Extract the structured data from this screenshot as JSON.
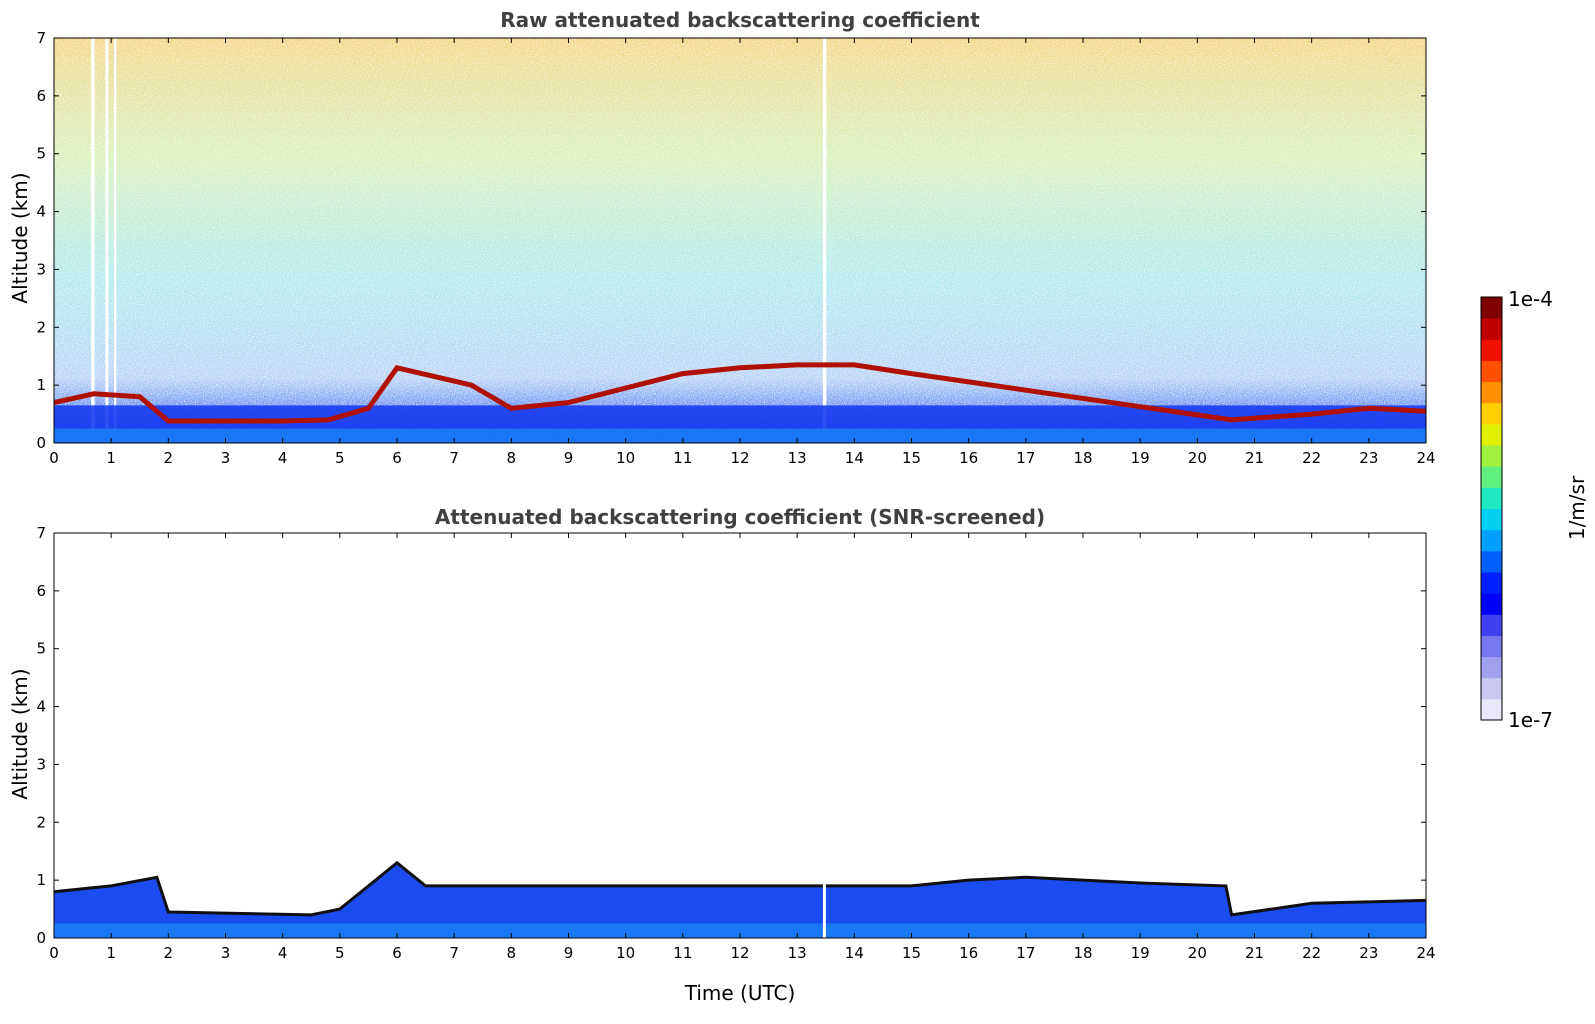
{
  "chart_data": [
    {
      "type": "heatmap",
      "title": "Raw attenuated backscattering coefficient",
      "xlabel": "",
      "ylabel": "Altitude (km)",
      "xlim": [
        0,
        24
      ],
      "ylim": [
        0,
        7
      ],
      "xticks": [
        "0",
        "1",
        "2",
        "3",
        "4",
        "5",
        "6",
        "7",
        "8",
        "9",
        "10",
        "11",
        "12",
        "13",
        "14",
        "15",
        "16",
        "17",
        "18",
        "19",
        "20",
        "21",
        "22",
        "23",
        "24"
      ],
      "yticks": [
        "0",
        "1",
        "2",
        "3",
        "4",
        "5",
        "6",
        "7"
      ],
      "grid": false,
      "color_scale": "log",
      "description_values": {
        "cloud_layer_top_km": [
          [
            0,
            0.7
          ],
          [
            0.7,
            0.85
          ],
          [
            1.5,
            0.8
          ],
          [
            2,
            0.38
          ],
          [
            4,
            0.38
          ],
          [
            4.8,
            0.4
          ],
          [
            5.5,
            0.6
          ],
          [
            6,
            1.3
          ],
          [
            7.3,
            1.0
          ],
          [
            8,
            0.6
          ],
          [
            9,
            0.7
          ],
          [
            11,
            1.2
          ],
          [
            12,
            1.3
          ],
          [
            13,
            1.35
          ],
          [
            14,
            1.35
          ],
          [
            15,
            1.2
          ],
          [
            20.6,
            0.4
          ],
          [
            22,
            0.5
          ],
          [
            23,
            0.6
          ],
          [
            24,
            0.55
          ]
        ]
      }
    },
    {
      "type": "heatmap",
      "title": "Attenuated backscattering coefficient (SNR-screened)",
      "xlabel": "Time (UTC)",
      "ylabel": "Altitude (km)",
      "xlim": [
        0,
        24
      ],
      "ylim": [
        0,
        7
      ],
      "xticks": [
        "0",
        "1",
        "2",
        "3",
        "4",
        "5",
        "6",
        "7",
        "8",
        "9",
        "10",
        "11",
        "12",
        "13",
        "14",
        "15",
        "16",
        "17",
        "18",
        "19",
        "20",
        "21",
        "22",
        "23",
        "24"
      ],
      "yticks": [
        "0",
        "1",
        "2",
        "3",
        "4",
        "5",
        "6",
        "7"
      ],
      "grid": false,
      "color_scale": "log",
      "description_values": {
        "boundary_layer_top_km": [
          [
            0,
            0.8
          ],
          [
            1,
            0.9
          ],
          [
            1.8,
            1.05
          ],
          [
            2,
            0.45
          ],
          [
            4.5,
            0.4
          ],
          [
            5,
            0.5
          ],
          [
            6,
            1.3
          ],
          [
            6.5,
            0.9
          ],
          [
            8,
            0.9
          ],
          [
            9,
            0.9
          ],
          [
            10,
            0.9
          ],
          [
            11,
            0.9
          ],
          [
            15,
            0.9
          ],
          [
            16,
            1.0
          ],
          [
            17,
            1.05
          ],
          [
            19,
            0.95
          ],
          [
            20.5,
            0.9
          ],
          [
            20.6,
            0.4
          ],
          [
            22,
            0.6
          ],
          [
            24,
            0.65
          ]
        ]
      }
    }
  ],
  "colorbar": {
    "max_label": "1e-4",
    "min_label": "1e-7",
    "unit_label": "1/m/sr",
    "colors": [
      "#e8e8f8",
      "#c8c8f0",
      "#a0a0ee",
      "#7878ee",
      "#4040f0",
      "#0000f8",
      "#0020ff",
      "#0060ff",
      "#00a0ff",
      "#00d0f0",
      "#20e8c0",
      "#60f080",
      "#a0f040",
      "#e0f000",
      "#ffd000",
      "#ff9000",
      "#ff5000",
      "#f01000",
      "#c00000",
      "#800000"
    ]
  }
}
